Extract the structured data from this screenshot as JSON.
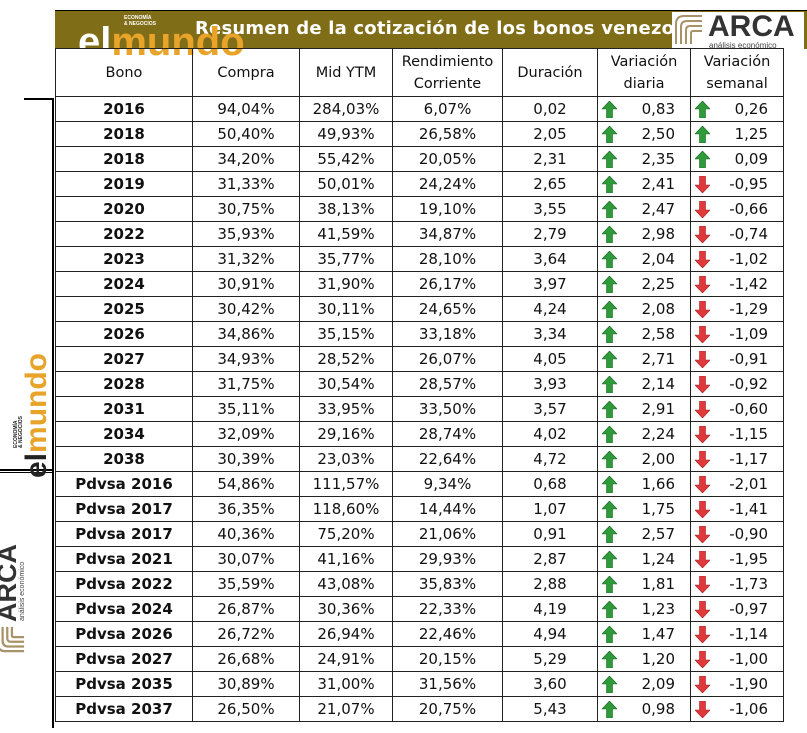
{
  "title": "Resumen de la cotización de los bonos venezolanos",
  "logos": {
    "elmundo": {
      "prefix": "el",
      "word": "mundo",
      "tagline_1": "ECONOMÍA",
      "tagline_2": "& NEGOCIOS"
    },
    "arca": {
      "word": "ARCA",
      "tagline": "análisis económico"
    }
  },
  "colors": {
    "banner": "#7f6d17",
    "up_arrow": "#2e9a3a",
    "down_arrow": "#e0393b",
    "brand_orange": "#e8a32a"
  },
  "columns": [
    {
      "line1": "Bono",
      "line2": ""
    },
    {
      "line1": "Compra",
      "line2": ""
    },
    {
      "line1": "Mid YTM",
      "line2": ""
    },
    {
      "line1": "Rendimiento",
      "line2": "Corriente"
    },
    {
      "line1": "Duración",
      "line2": ""
    },
    {
      "line1": "Variación",
      "line2": "diaria"
    },
    {
      "line1": "Variación",
      "line2": "semanal"
    }
  ],
  "rows": [
    {
      "bono": "2016",
      "compra": "94,04%",
      "ytm": "284,03%",
      "rend": "6,07%",
      "dur": "0,02",
      "diaria": "0,83",
      "diaria_dir": "up",
      "semanal": "0,26",
      "semanal_dir": "up"
    },
    {
      "bono": "2018",
      "compra": "50,40%",
      "ytm": "49,93%",
      "rend": "26,58%",
      "dur": "2,05",
      "diaria": "2,50",
      "diaria_dir": "up",
      "semanal": "1,25",
      "semanal_dir": "up"
    },
    {
      "bono": "2018",
      "compra": "34,20%",
      "ytm": "55,42%",
      "rend": "20,05%",
      "dur": "2,31",
      "diaria": "2,35",
      "diaria_dir": "up",
      "semanal": "0,09",
      "semanal_dir": "up"
    },
    {
      "bono": "2019",
      "compra": "31,33%",
      "ytm": "50,01%",
      "rend": "24,24%",
      "dur": "2,65",
      "diaria": "2,41",
      "diaria_dir": "up",
      "semanal": "-0,95",
      "semanal_dir": "down"
    },
    {
      "bono": "2020",
      "compra": "30,75%",
      "ytm": "38,13%",
      "rend": "19,10%",
      "dur": "3,55",
      "diaria": "2,47",
      "diaria_dir": "up",
      "semanal": "-0,66",
      "semanal_dir": "down"
    },
    {
      "bono": "2022",
      "compra": "35,93%",
      "ytm": "41,59%",
      "rend": "34,87%",
      "dur": "2,79",
      "diaria": "2,98",
      "diaria_dir": "up",
      "semanal": "-0,74",
      "semanal_dir": "down"
    },
    {
      "bono": "2023",
      "compra": "31,32%",
      "ytm": "35,77%",
      "rend": "28,10%",
      "dur": "3,64",
      "diaria": "2,04",
      "diaria_dir": "up",
      "semanal": "-1,02",
      "semanal_dir": "down"
    },
    {
      "bono": "2024",
      "compra": "30,91%",
      "ytm": "31,90%",
      "rend": "26,17%",
      "dur": "3,97",
      "diaria": "2,25",
      "diaria_dir": "up",
      "semanal": "-1,42",
      "semanal_dir": "down"
    },
    {
      "bono": "2025",
      "compra": "30,42%",
      "ytm": "30,11%",
      "rend": "24,65%",
      "dur": "4,24",
      "diaria": "2,08",
      "diaria_dir": "up",
      "semanal": "-1,29",
      "semanal_dir": "down"
    },
    {
      "bono": "2026",
      "compra": "34,86%",
      "ytm": "35,15%",
      "rend": "33,18%",
      "dur": "3,34",
      "diaria": "2,58",
      "diaria_dir": "up",
      "semanal": "-1,09",
      "semanal_dir": "down"
    },
    {
      "bono": "2027",
      "compra": "34,93%",
      "ytm": "28,52%",
      "rend": "26,07%",
      "dur": "4,05",
      "diaria": "2,71",
      "diaria_dir": "up",
      "semanal": "-0,91",
      "semanal_dir": "down"
    },
    {
      "bono": "2028",
      "compra": "31,75%",
      "ytm": "30,54%",
      "rend": "28,57%",
      "dur": "3,93",
      "diaria": "2,14",
      "diaria_dir": "up",
      "semanal": "-0,92",
      "semanal_dir": "down"
    },
    {
      "bono": "2031",
      "compra": "35,11%",
      "ytm": "33,95%",
      "rend": "33,50%",
      "dur": "3,57",
      "diaria": "2,91",
      "diaria_dir": "up",
      "semanal": "-0,60",
      "semanal_dir": "down"
    },
    {
      "bono": "2034",
      "compra": "32,09%",
      "ytm": "29,16%",
      "rend": "28,74%",
      "dur": "4,02",
      "diaria": "2,24",
      "diaria_dir": "up",
      "semanal": "-1,15",
      "semanal_dir": "down"
    },
    {
      "bono": "2038",
      "compra": "30,39%",
      "ytm": "23,03%",
      "rend": "22,64%",
      "dur": "4,72",
      "diaria": "2,00",
      "diaria_dir": "up",
      "semanal": "-1,17",
      "semanal_dir": "down"
    },
    {
      "bono": "Pdvsa 2016",
      "compra": "54,86%",
      "ytm": "111,57%",
      "rend": "9,34%",
      "dur": "0,68",
      "diaria": "1,66",
      "diaria_dir": "up",
      "semanal": "-2,01",
      "semanal_dir": "down"
    },
    {
      "bono": "Pdvsa 2017",
      "compra": "36,35%",
      "ytm": "118,60%",
      "rend": "14,44%",
      "dur": "1,07",
      "diaria": "1,75",
      "diaria_dir": "up",
      "semanal": "-1,41",
      "semanal_dir": "down"
    },
    {
      "bono": "Pdvsa 2017",
      "compra": "40,36%",
      "ytm": "75,20%",
      "rend": "21,06%",
      "dur": "0,91",
      "diaria": "2,57",
      "diaria_dir": "up",
      "semanal": "-0,90",
      "semanal_dir": "down"
    },
    {
      "bono": "Pdvsa 2021",
      "compra": "30,07%",
      "ytm": "41,16%",
      "rend": "29,93%",
      "dur": "2,87",
      "diaria": "1,24",
      "diaria_dir": "up",
      "semanal": "-1,95",
      "semanal_dir": "down"
    },
    {
      "bono": "Pdvsa 2022",
      "compra": "35,59%",
      "ytm": "43,08%",
      "rend": "35,83%",
      "dur": "2,88",
      "diaria": "1,81",
      "diaria_dir": "up",
      "semanal": "-1,73",
      "semanal_dir": "down"
    },
    {
      "bono": "Pdvsa 2024",
      "compra": "26,87%",
      "ytm": "30,36%",
      "rend": "22,33%",
      "dur": "4,19",
      "diaria": "1,23",
      "diaria_dir": "up",
      "semanal": "-0,97",
      "semanal_dir": "down"
    },
    {
      "bono": "Pdvsa 2026",
      "compra": "26,72%",
      "ytm": "26,94%",
      "rend": "22,46%",
      "dur": "4,94",
      "diaria": "1,47",
      "diaria_dir": "up",
      "semanal": "-1,14",
      "semanal_dir": "down"
    },
    {
      "bono": "Pdvsa 2027",
      "compra": "26,68%",
      "ytm": "24,91%",
      "rend": "20,15%",
      "dur": "5,29",
      "diaria": "1,20",
      "diaria_dir": "up",
      "semanal": "-1,00",
      "semanal_dir": "down"
    },
    {
      "bono": "Pdvsa 2035",
      "compra": "30,89%",
      "ytm": "31,00%",
      "rend": "31,56%",
      "dur": "3,60",
      "diaria": "2,09",
      "diaria_dir": "up",
      "semanal": "-1,90",
      "semanal_dir": "down"
    },
    {
      "bono": "Pdvsa 2037",
      "compra": "26,50%",
      "ytm": "21,07%",
      "rend": "20,75%",
      "dur": "5,43",
      "diaria": "0,98",
      "diaria_dir": "up",
      "semanal": "-1,06",
      "semanal_dir": "down"
    }
  ]
}
